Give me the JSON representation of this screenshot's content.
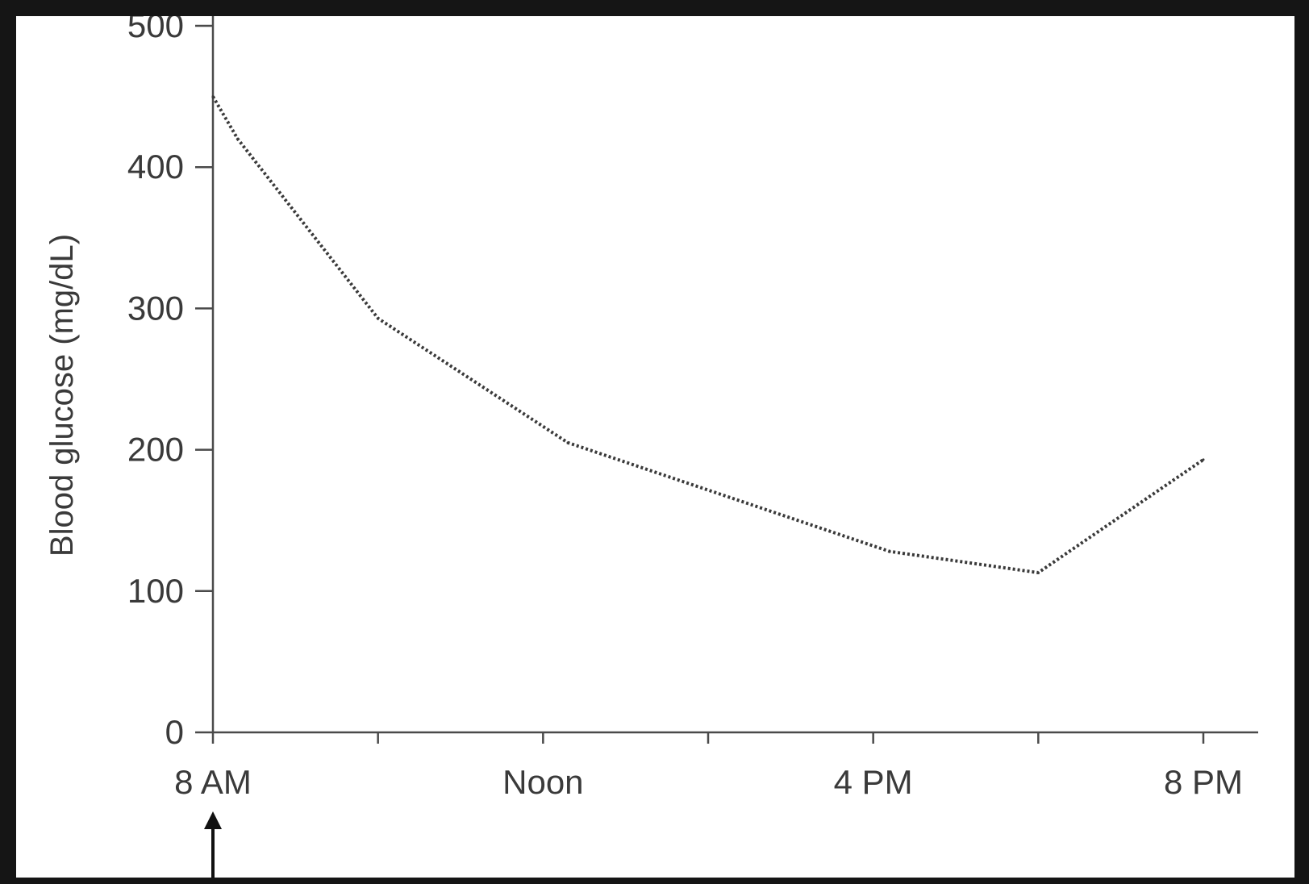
{
  "chart_data": {
    "type": "line",
    "title": "",
    "xlabel": "",
    "ylabel": "Blood glucose (mg/dL)",
    "ylim": [
      0,
      500
    ],
    "y_ticks": [
      0,
      100,
      200,
      300,
      400,
      500
    ],
    "xlim_hours": [
      8,
      20
    ],
    "x_ticks": [
      {
        "hour": 8,
        "label": "8 AM"
      },
      {
        "hour": 10,
        "label": ""
      },
      {
        "hour": 12,
        "label": "Noon"
      },
      {
        "hour": 14,
        "label": ""
      },
      {
        "hour": 16,
        "label": "4 PM"
      },
      {
        "hour": 18,
        "label": ""
      },
      {
        "hour": 20,
        "label": "8 PM"
      }
    ],
    "series": [
      {
        "x_hours": [
          8,
          8.3,
          10,
          12.3,
          16.2,
          18,
          20
        ],
        "values": [
          450,
          420,
          293,
          205,
          128,
          113,
          193
        ]
      }
    ],
    "grid": false,
    "legend": "none",
    "annotations": [
      {
        "type": "arrow-up",
        "at_hour": 8,
        "label": ""
      }
    ],
    "colors": {
      "line": "#3a3a3a",
      "axis": "#4a4a4a",
      "text": "#3a3a3a",
      "frame": "#151515",
      "background": "#ffffff"
    }
  }
}
